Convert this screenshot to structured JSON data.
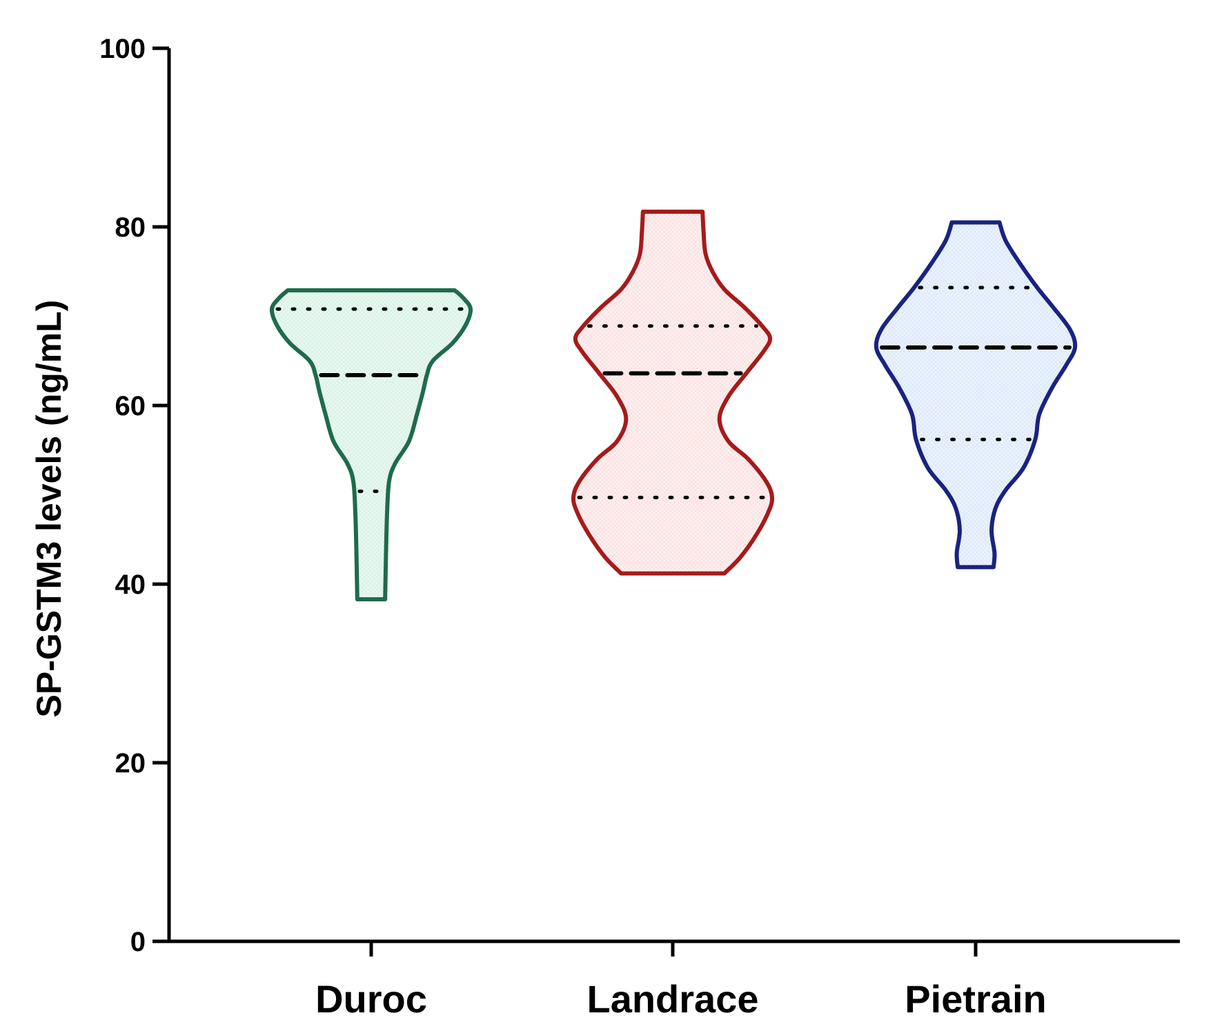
{
  "chart_data": {
    "type": "violin",
    "title": "",
    "xlabel": "",
    "ylabel": "SP-GSTM3 levels  (ng/mL)",
    "ylim": [
      0,
      100
    ],
    "yticks": [
      0,
      20,
      40,
      60,
      80,
      100
    ],
    "ytick_labels": [
      "0",
      "20",
      "40",
      "60",
      "80",
      "100"
    ],
    "categories": [
      "Duroc",
      "Landrace",
      "Pietrain"
    ],
    "grid": false,
    "legend": "none",
    "series": [
      {
        "category": "Duroc",
        "color": "#1f6b4c",
        "fill": "#d9f2e6",
        "min": 38.3,
        "max": 72.9,
        "q1": 50.4,
        "median": 63.4,
        "q3": 70.8,
        "density": [
          [
            38.3,
            0.14
          ],
          [
            44,
            0.15
          ],
          [
            48,
            0.16
          ],
          [
            51.5,
            0.18
          ],
          [
            53.5,
            0.24
          ],
          [
            56,
            0.38
          ],
          [
            59,
            0.46
          ],
          [
            61.5,
            0.52
          ],
          [
            63.4,
            0.56
          ],
          [
            65,
            0.62
          ],
          [
            67,
            0.82
          ],
          [
            69,
            0.95
          ],
          [
            70.8,
            1.0
          ],
          [
            72,
            0.93
          ],
          [
            72.9,
            0.84
          ]
        ]
      },
      {
        "category": "Landrace",
        "color": "#a51b1b",
        "fill": "#fbe2e2",
        "min": 41.2,
        "max": 81.7,
        "q1": 49.7,
        "median": 63.6,
        "q3": 68.9,
        "density": [
          [
            41.2,
            0.52
          ],
          [
            43,
            0.68
          ],
          [
            45.5,
            0.84
          ],
          [
            48,
            0.96
          ],
          [
            49.7,
            1.0
          ],
          [
            51.5,
            0.94
          ],
          [
            54,
            0.76
          ],
          [
            56,
            0.56
          ],
          [
            58.5,
            0.47
          ],
          [
            61,
            0.56
          ],
          [
            63.6,
            0.74
          ],
          [
            66,
            0.91
          ],
          [
            67.5,
            0.98
          ],
          [
            68.9,
            0.9
          ],
          [
            71,
            0.72
          ],
          [
            73,
            0.52
          ],
          [
            75,
            0.4
          ],
          [
            77,
            0.33
          ],
          [
            79.5,
            0.31
          ],
          [
            81.7,
            0.3
          ]
        ]
      },
      {
        "category": "Pietrain",
        "color": "#1a237e",
        "fill": "#dce9fb",
        "min": 41.9,
        "max": 80.5,
        "q1": 56.2,
        "median": 66.5,
        "q3": 73.2,
        "density": [
          [
            41.9,
            0.18
          ],
          [
            43.5,
            0.19
          ],
          [
            46,
            0.16
          ],
          [
            48.5,
            0.2
          ],
          [
            50.5,
            0.3
          ],
          [
            53,
            0.48
          ],
          [
            56.2,
            0.6
          ],
          [
            59,
            0.64
          ],
          [
            62,
            0.77
          ],
          [
            64.5,
            0.91
          ],
          [
            66.5,
            1.0
          ],
          [
            68.5,
            0.95
          ],
          [
            71,
            0.78
          ],
          [
            73.2,
            0.62
          ],
          [
            76,
            0.44
          ],
          [
            78.5,
            0.3
          ],
          [
            80.5,
            0.24
          ]
        ]
      }
    ]
  }
}
